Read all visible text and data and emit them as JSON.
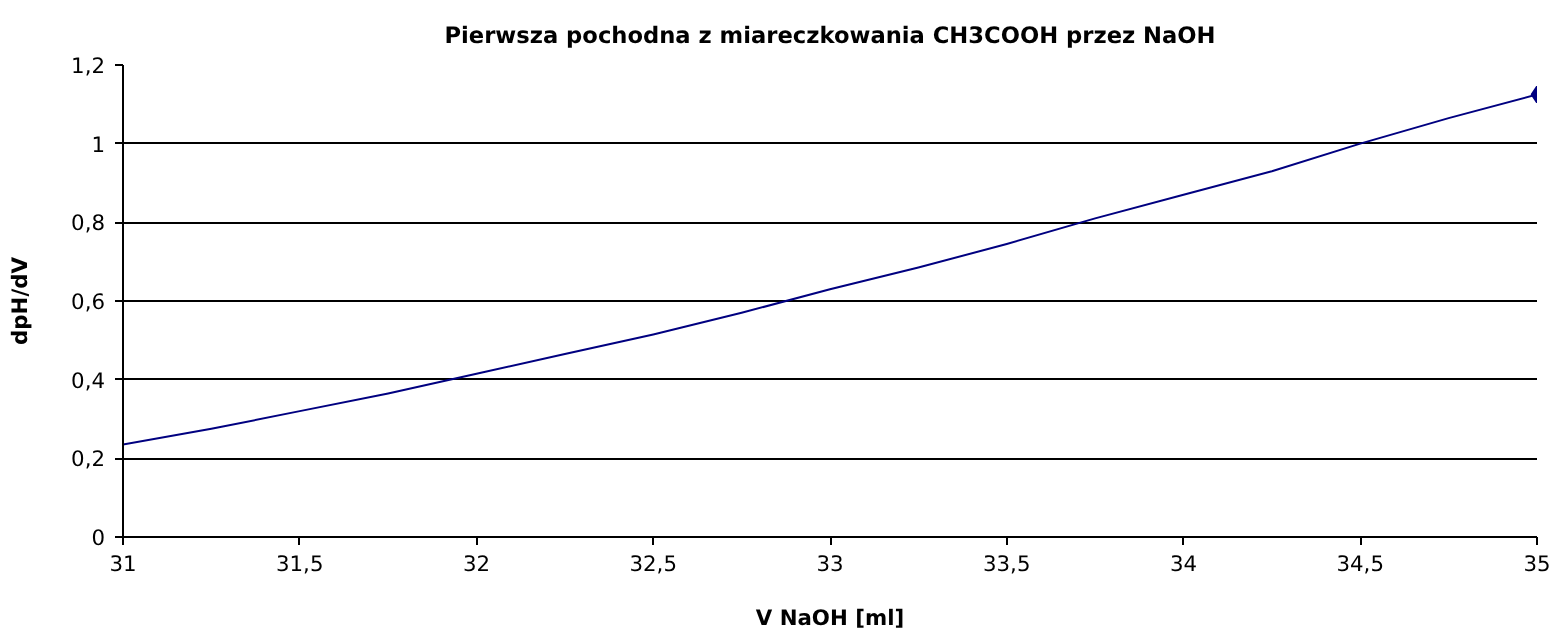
{
  "chart_data": {
    "type": "line",
    "title": "Pierwsza pochodna z miareczkowania CH3COOH przez NaOH",
    "xlabel": "V NaOH [ml]",
    "ylabel": "dpH/dV",
    "series": [
      {
        "color": "#000080",
        "x": [
          31,
          31.25,
          31.5,
          31.75,
          32,
          32.25,
          32.5,
          32.75,
          33,
          33.25,
          33.5,
          33.75,
          34,
          34.25,
          34.5,
          34.75,
          35
        ],
        "values": [
          0.235,
          0.275,
          0.32,
          0.365,
          0.415,
          0.465,
          0.515,
          0.57,
          0.63,
          0.685,
          0.745,
          0.81,
          0.87,
          0.93,
          1.0,
          1.065,
          1.125
        ]
      },
      {
        "type": "scatter",
        "color": "#000080",
        "marker": "diamond",
        "x": [
          35
        ],
        "values": [
          1.125
        ]
      }
    ],
    "xlim": [
      31,
      35
    ],
    "ylim": [
      0,
      1.2
    ],
    "xticks": [
      31,
      {
        "value": 31.5,
        "label": "31,5"
      },
      32,
      {
        "value": 32.5,
        "label": "32,5"
      },
      33,
      {
        "value": 33.5,
        "label": "33,5"
      },
      34,
      {
        "value": 34.5,
        "label": "34,5"
      },
      35
    ],
    "yticks": [
      0,
      {
        "value": 0.2,
        "label": "0,2"
      },
      {
        "value": 0.4,
        "label": "0,4"
      },
      {
        "value": 0.6,
        "label": "0,6"
      },
      {
        "value": 0.8,
        "label": "0,8"
      },
      1,
      {
        "value": 1.2,
        "label": "1,2"
      }
    ],
    "grid": "y"
  }
}
